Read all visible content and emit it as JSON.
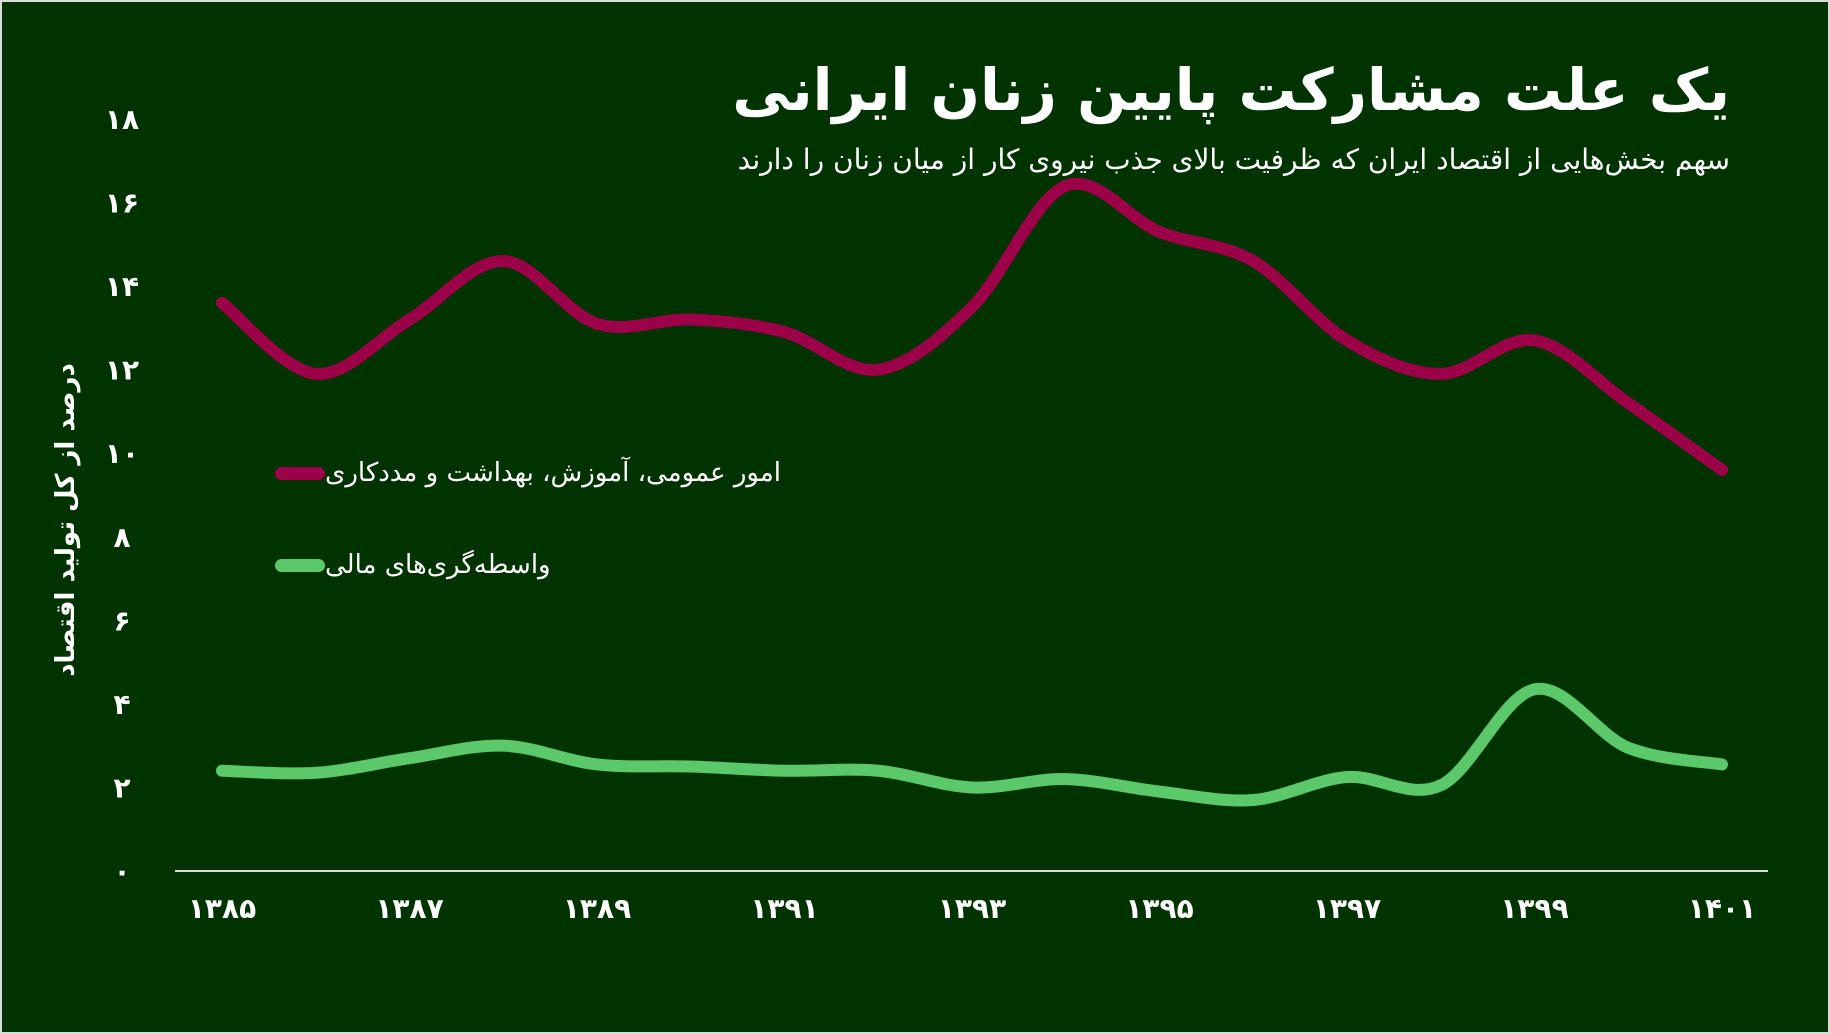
{
  "header": {
    "title": "یک علت مشارکت پایین زنان ایرانی",
    "subtitle": "سهم بخش‌هایی از اقتصاد ایران که ظرفیت بالای جذب نیروی کار از میان زنان را دارند"
  },
  "axis": {
    "ylabel": "درصد از کل تولید اقتصاد",
    "y_ticks": [
      "۰",
      "۲",
      "۴",
      "۶",
      "۸",
      "۱۰",
      "۱۲",
      "۱۴",
      "۱۶",
      "۱۸"
    ],
    "x_ticks": [
      "۱۳۸۵",
      "۱۳۸۷",
      "۱۳۸۹",
      "۱۳۹۱",
      "۱۳۹۳",
      "۱۳۹۵",
      "۱۳۹۷",
      "۱۳۹۹",
      "۱۴۰۱"
    ]
  },
  "legend": [
    {
      "label": "امور عمومی، آموزش، بهداشت و مددکاری",
      "color": "#9B0048"
    },
    {
      "label": "واسطه‌گری‌های مالی",
      "color": "#5BC86A"
    }
  ],
  "colors": {
    "background": "#013300",
    "axis_line": "#d9ddd9",
    "text": "#ffffff"
  },
  "chart_data": {
    "type": "line",
    "title": "یک علت مشارکت پایین زنان ایرانی",
    "subtitle": "سهم بخش‌هایی از اقتصاد ایران که ظرفیت بالای جذب نیروی کار از میان زنان را دارند",
    "xlabel": "",
    "ylabel": "درصد از کل تولید اقتصاد",
    "x": [
      1385,
      1386,
      1387,
      1388,
      1389,
      1390,
      1391,
      1392,
      1393,
      1394,
      1395,
      1396,
      1397,
      1398,
      1399,
      1400,
      1401
    ],
    "x_tick_labels": [
      "۱۳۸۵",
      "۱۳۸۷",
      "۱۳۸۹",
      "۱۳۹۱",
      "۱۳۹۳",
      "۱۳۹۵",
      "۱۳۹۷",
      "۱۳۹۹",
      "۱۴۰۱"
    ],
    "ylim": [
      0,
      18
    ],
    "y_ticks": [
      0,
      2,
      4,
      6,
      8,
      10,
      12,
      14,
      16,
      18
    ],
    "grid": false,
    "legend_position": "left-middle",
    "series": [
      {
        "name": "امور عمومی، آموزش، بهداشت و مددکاری",
        "color": "#9B0048",
        "values": [
          13.6,
          11.9,
          13.2,
          14.6,
          13.1,
          13.2,
          12.9,
          12.0,
          13.5,
          16.4,
          15.3,
          14.6,
          12.7,
          11.9,
          12.7,
          11.2,
          9.6
        ]
      },
      {
        "name": "واسطه‌گری‌های مالی",
        "color": "#5BC86A",
        "values": [
          2.4,
          2.35,
          2.7,
          3.0,
          2.55,
          2.5,
          2.4,
          2.4,
          2.0,
          2.2,
          1.9,
          1.7,
          2.25,
          2.05,
          4.35,
          2.95,
          2.55
        ]
      }
    ]
  }
}
